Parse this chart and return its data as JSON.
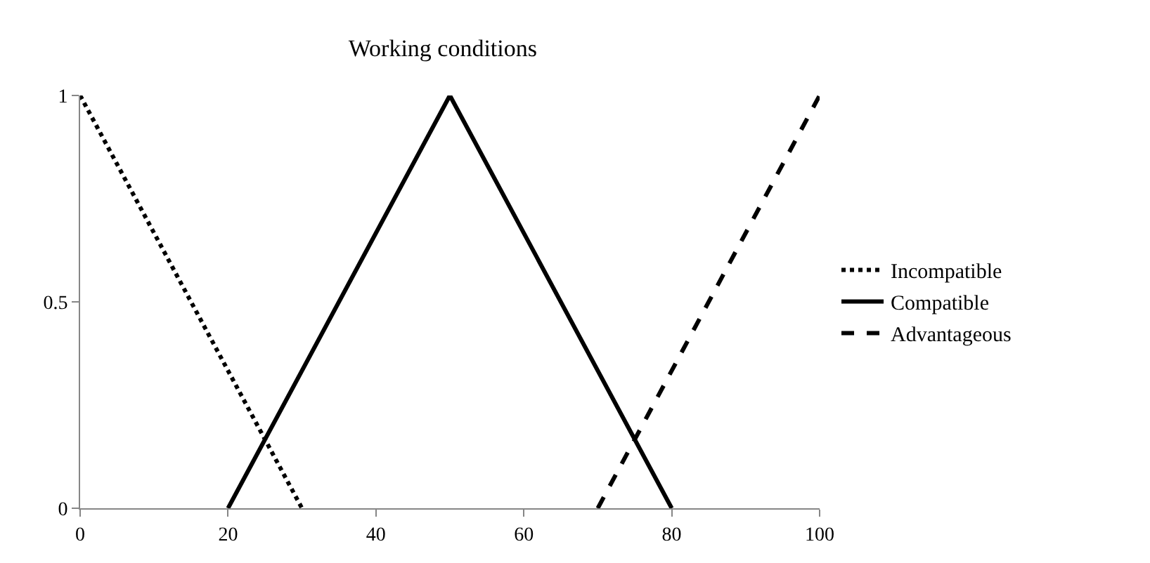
{
  "chart_data": {
    "type": "line",
    "title": "Working conditions",
    "xlim": [
      0,
      100
    ],
    "xticks": [
      0,
      20,
      40,
      60,
      80,
      100
    ],
    "ylim": [
      0,
      1
    ],
    "yticks": [
      0,
      0.5,
      1
    ],
    "grid": false,
    "legend": "right",
    "marker": "none",
    "series": [
      {
        "name": "Incompatible",
        "color": "#000000",
        "line_style": "dotted",
        "x": [
          0,
          30
        ],
        "values": [
          1,
          0
        ]
      },
      {
        "name": "Compatible",
        "color": "#000000",
        "line_style": "solid",
        "x": [
          20,
          50,
          80
        ],
        "values": [
          0,
          1,
          0
        ]
      },
      {
        "name": "Advantageous",
        "color": "#000000",
        "line_style": "dashed",
        "x": [
          70,
          100
        ],
        "values": [
          0,
          1
        ]
      }
    ]
  }
}
